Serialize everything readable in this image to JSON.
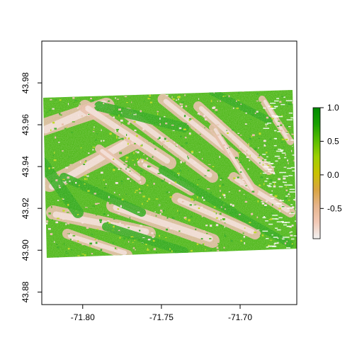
{
  "map": {
    "x_ticks": [
      {
        "value": -71.8,
        "label": "-71.80"
      },
      {
        "value": -71.75,
        "label": "-71.75"
      },
      {
        "value": -71.7,
        "label": "-71.70"
      }
    ],
    "y_ticks": [
      {
        "value": 43.88,
        "label": "43.88"
      },
      {
        "value": 43.9,
        "label": "43.90"
      },
      {
        "value": 43.92,
        "label": "43.92"
      },
      {
        "value": 43.94,
        "label": "43.94"
      },
      {
        "value": 43.96,
        "label": "43.96"
      },
      {
        "value": 43.98,
        "label": "43.98"
      }
    ],
    "xlim": [
      -71.826,
      -71.664
    ],
    "ylim": [
      43.874,
      44.0
    ]
  },
  "legend": {
    "ticks": [
      {
        "value": 1.0,
        "label": "1.0"
      },
      {
        "value": 0.5,
        "label": "0.5"
      },
      {
        "value": 0.0,
        "label": "0.0"
      },
      {
        "value": -0.5,
        "label": "-0.5"
      }
    ],
    "range": [
      -0.95,
      1.0
    ],
    "colors": [
      "#f2f2f2",
      "#f2c9b7",
      "#e6b48c",
      "#d9a441",
      "#c9c200",
      "#9ed000",
      "#58bd00",
      "#19a000",
      "#008a00"
    ]
  },
  "colors": {
    "frame": "#000000",
    "background": "#ffffff",
    "dark_green": "#19a000",
    "green": "#3cb000",
    "yellow_green": "#b5d300",
    "tan": "#e3b59c",
    "pale": "#f2dcd6"
  }
}
